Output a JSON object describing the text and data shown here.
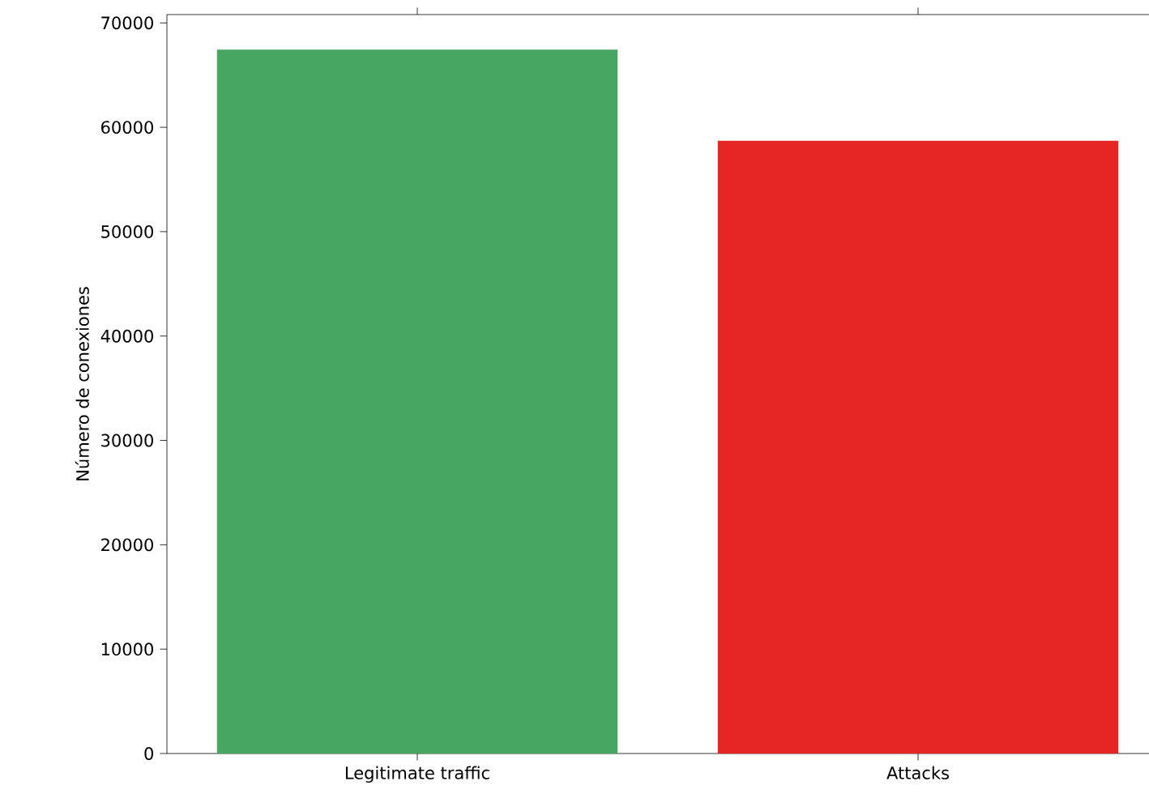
{
  "chart_data": {
    "type": "bar",
    "ylabel": "Número de conexiones",
    "categories": [
      "Legitimate traffic",
      "Attacks"
    ],
    "values": [
      67450,
      58700
    ],
    "colors": [
      "#47a661",
      "#e52625"
    ],
    "ylim": [
      0,
      70800
    ],
    "yticks": [
      0,
      10000,
      20000,
      30000,
      40000,
      50000,
      60000,
      70000
    ],
    "grid": false
  }
}
